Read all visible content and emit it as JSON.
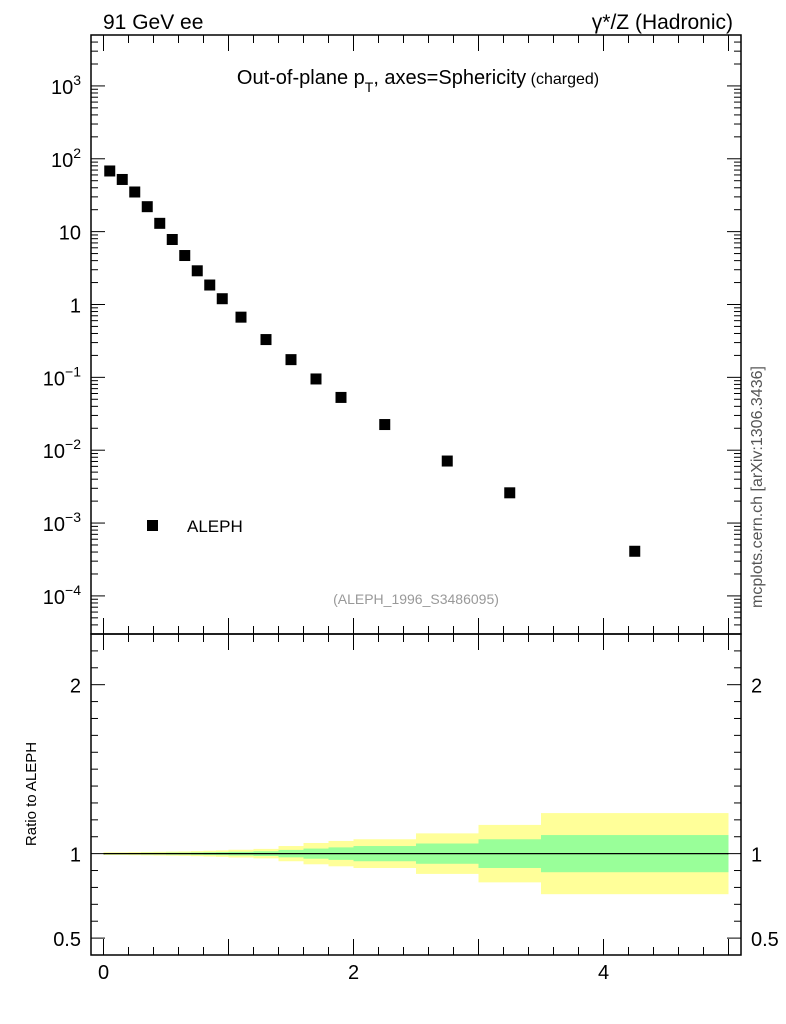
{
  "header": {
    "left_label": "91 GeV ee",
    "right_label": "γ*/Z (Hadronic)"
  },
  "side_label": "mcplots.cern.ch [arXiv:1306.3436]",
  "chart_data": {
    "type": "scatter",
    "title": {
      "main": "Out-of-plane p",
      "subscript": "T",
      "rest": ", axes=Sphericity",
      "small": " (charged)"
    },
    "analysis_tag": "(ALEPH_1996_S3486095)",
    "legend": {
      "entries": [
        "ALEPH"
      ],
      "placement": "lower-left"
    },
    "xlim": [
      -0.1,
      5.1
    ],
    "ylim": [
      3e-05,
      5000
    ],
    "yscale": "log",
    "xticks": [
      0,
      2,
      4
    ],
    "yticks": [
      {
        "value": 0.0001,
        "base": "10",
        "exp": "−4"
      },
      {
        "value": 0.001,
        "base": "10",
        "exp": "−3"
      },
      {
        "value": 0.01,
        "base": "10",
        "exp": "−2"
      },
      {
        "value": 0.1,
        "base": "10",
        "exp": "−1"
      },
      {
        "value": 1,
        "base": "1",
        "exp": ""
      },
      {
        "value": 10,
        "base": "10",
        "exp": ""
      },
      {
        "value": 100,
        "base": "10",
        "exp": "2"
      },
      {
        "value": 1000,
        "base": "10",
        "exp": "3"
      }
    ],
    "series": [
      {
        "name": "ALEPH",
        "x": [
          0.05,
          0.15,
          0.25,
          0.35,
          0.45,
          0.55,
          0.65,
          0.75,
          0.85,
          0.95,
          1.1,
          1.3,
          1.5,
          1.7,
          1.9,
          2.25,
          2.75,
          3.25,
          4.25
        ],
        "y": [
          68,
          52,
          35,
          22,
          13,
          7.8,
          4.7,
          2.9,
          1.85,
          1.2,
          0.67,
          0.33,
          0.175,
          0.095,
          0.053,
          0.0225,
          0.0071,
          0.0026,
          0.00041
        ]
      }
    ],
    "ratio": {
      "ylabel": "Ratio to ALEPH",
      "ylim": [
        0.4,
        2.3
      ],
      "yticks": [
        {
          "value": 0.5,
          "label": "0.5"
        },
        {
          "value": 1,
          "label": "1"
        },
        {
          "value": 2,
          "label": "2"
        }
      ],
      "bands": {
        "bin_edges": [
          0,
          0.1,
          0.2,
          0.3,
          0.4,
          0.5,
          0.6,
          0.7,
          0.8,
          0.9,
          1.0,
          1.2,
          1.4,
          1.6,
          1.8,
          2.0,
          2.5,
          3.0,
          3.5,
          5.0
        ],
        "stat_half": [
          0.004,
          0.004,
          0.004,
          0.005,
          0.005,
          0.006,
          0.006,
          0.007,
          0.008,
          0.009,
          0.011,
          0.014,
          0.022,
          0.03,
          0.037,
          0.045,
          0.06,
          0.085,
          0.11
        ],
        "total_half": [
          0.008,
          0.008,
          0.009,
          0.01,
          0.011,
          0.012,
          0.013,
          0.015,
          0.017,
          0.019,
          0.023,
          0.028,
          0.045,
          0.063,
          0.075,
          0.085,
          0.12,
          0.17,
          0.24
        ],
        "stat_color": "#99ff99",
        "total_color": "#ffff99"
      }
    }
  }
}
